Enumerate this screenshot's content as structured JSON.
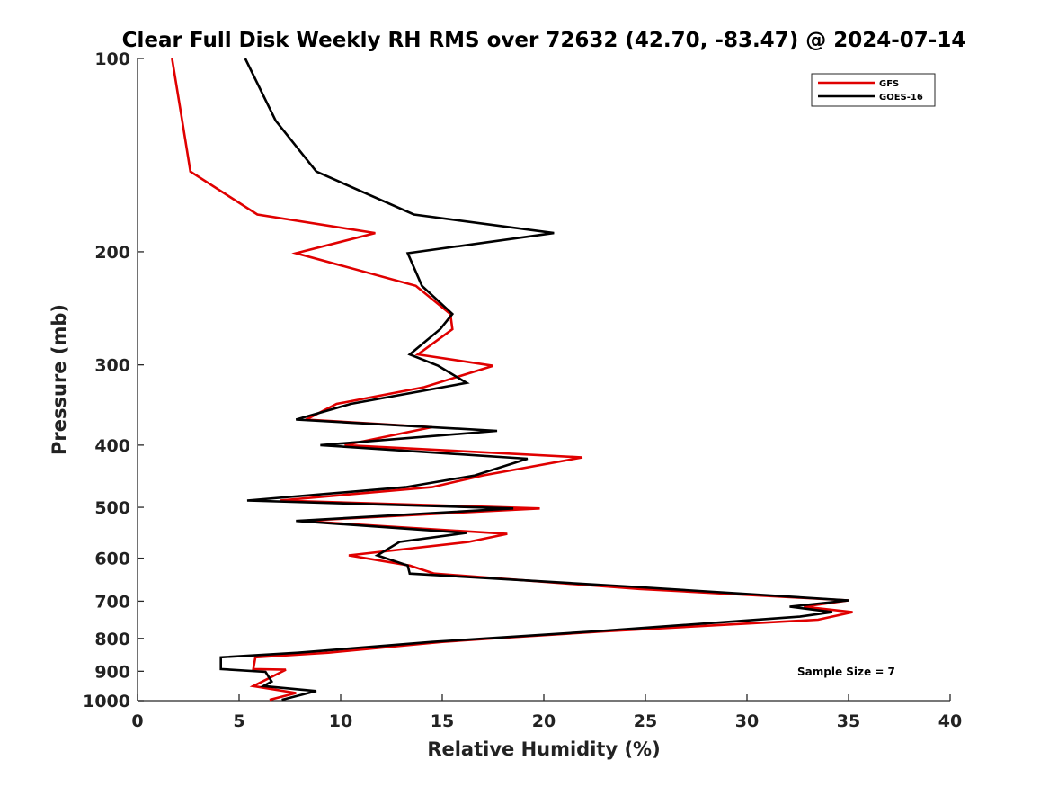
{
  "chart_data": {
    "type": "line",
    "title": "Clear Full Disk Weekly RH RMS over 72632 (42.70, -83.47) @ 2024-07-14",
    "xlabel": "Relative Humidity (%)",
    "ylabel": "Pressure (mb)",
    "xlim": [
      0,
      40
    ],
    "ylim": [
      100,
      1000
    ],
    "yscale": "log",
    "y_reversed": true,
    "xticks": [
      "0",
      "5",
      "10",
      "15",
      "20",
      "25",
      "30",
      "35",
      "40"
    ],
    "yticks": [
      "100",
      "200",
      "300",
      "400",
      "500",
      "600",
      "700",
      "800",
      "900",
      "1000"
    ],
    "grid": false,
    "legend_position": "top-right",
    "annotation": "Sample Size = 7",
    "series": [
      {
        "name": "GFS",
        "color": "#e00000",
        "points": [
          [
            1.7,
            100
          ],
          [
            2.2,
            125
          ],
          [
            2.6,
            150
          ],
          [
            5.9,
            175
          ],
          [
            11.7,
            187
          ],
          [
            7.8,
            201
          ],
          [
            13.7,
            226
          ],
          [
            15.4,
            250
          ],
          [
            15.5,
            264
          ],
          [
            13.8,
            289
          ],
          [
            17.5,
            301
          ],
          [
            14.1,
            325
          ],
          [
            9.8,
            345
          ],
          [
            8.3,
            365
          ],
          [
            14.5,
            375
          ],
          [
            10.2,
            400
          ],
          [
            21.9,
            418
          ],
          [
            17.0,
            446
          ],
          [
            14.5,
            465
          ],
          [
            7.0,
            488
          ],
          [
            19.8,
            502
          ],
          [
            8.0,
            525
          ],
          [
            18.2,
            550
          ],
          [
            16.3,
            566
          ],
          [
            10.4,
            594
          ],
          [
            13.4,
            616
          ],
          [
            14.6,
            634
          ],
          [
            24.7,
            670
          ],
          [
            35.0,
            698
          ],
          [
            32.8,
            714
          ],
          [
            35.2,
            728
          ],
          [
            33.5,
            748
          ],
          [
            23.0,
            780
          ],
          [
            17.5,
            800
          ],
          [
            15.0,
            810
          ],
          [
            9.4,
            842
          ],
          [
            5.8,
            856
          ],
          [
            5.7,
            893
          ],
          [
            7.3,
            895
          ],
          [
            5.7,
            949
          ],
          [
            7.8,
            973
          ],
          [
            6.5,
            997
          ]
        ]
      },
      {
        "name": "GOES-16",
        "color": "#000000",
        "points": [
          [
            5.3,
            100
          ],
          [
            6.8,
            125
          ],
          [
            8.8,
            150
          ],
          [
            13.6,
            175
          ],
          [
            20.5,
            187
          ],
          [
            13.3,
            201
          ],
          [
            14.0,
            226
          ],
          [
            15.5,
            250
          ],
          [
            14.9,
            264
          ],
          [
            13.4,
            289
          ],
          [
            14.8,
            301
          ],
          [
            16.2,
            320
          ],
          [
            10.5,
            345
          ],
          [
            7.8,
            365
          ],
          [
            17.7,
            380
          ],
          [
            9.0,
            400
          ],
          [
            19.2,
            420
          ],
          [
            16.6,
            446
          ],
          [
            13.2,
            465
          ],
          [
            5.4,
            488
          ],
          [
            18.5,
            502
          ],
          [
            7.8,
            525
          ],
          [
            16.2,
            548
          ],
          [
            12.9,
            566
          ],
          [
            11.8,
            594
          ],
          [
            13.3,
            616
          ],
          [
            13.4,
            634
          ],
          [
            24.5,
            665
          ],
          [
            35.0,
            698
          ],
          [
            32.1,
            714
          ],
          [
            34.2,
            728
          ],
          [
            32.6,
            740
          ],
          [
            22.5,
            780
          ],
          [
            14.5,
            810
          ],
          [
            7.9,
            842
          ],
          [
            4.1,
            856
          ],
          [
            4.1,
            893
          ],
          [
            6.3,
            902
          ],
          [
            6.6,
            934
          ],
          [
            6.2,
            949
          ],
          [
            8.8,
            966
          ],
          [
            7.1,
            997
          ]
        ]
      }
    ]
  }
}
